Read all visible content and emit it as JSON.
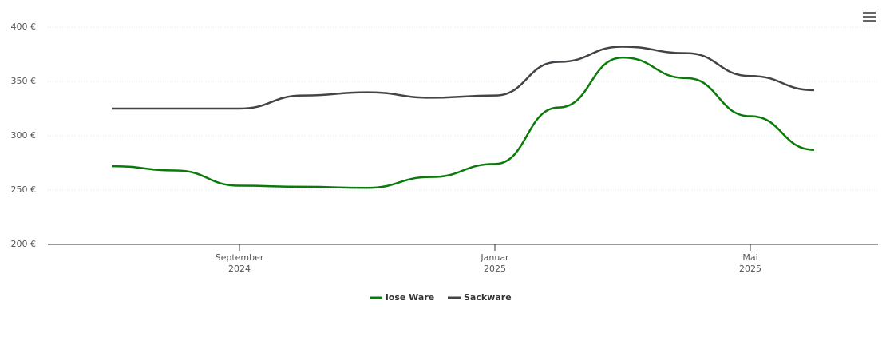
{
  "chart_data": {
    "type": "line",
    "x": [
      "2024-07",
      "2024-08",
      "2024-09",
      "2024-10",
      "2024-11",
      "2024-12",
      "2025-01",
      "2025-02",
      "2025-03",
      "2025-04",
      "2025-05",
      "2025-06"
    ],
    "series": [
      {
        "name": "lose Ware",
        "color": "#0a7a0a",
        "values": [
          272,
          268,
          254,
          253,
          252,
          262,
          274,
          326,
          372,
          353,
          318,
          287
        ]
      },
      {
        "name": "Sackware",
        "color": "#434348",
        "values": [
          325,
          325,
          325,
          337,
          340,
          335,
          337,
          368,
          382,
          376,
          355,
          342
        ]
      }
    ],
    "xlim": [
      "2024-06",
      "2025-07"
    ],
    "xticks": [
      {
        "value": "2024-09",
        "label": "September",
        "year": "2024"
      },
      {
        "value": "2025-01",
        "label": "Januar",
        "year": "2025"
      },
      {
        "value": "2025-05",
        "label": "Mai",
        "year": "2025"
      }
    ],
    "ylim": [
      200,
      400
    ],
    "yticks": [
      {
        "value": 200,
        "label": "200 €"
      },
      {
        "value": 250,
        "label": "250 €"
      },
      {
        "value": 300,
        "label": "300 €"
      },
      {
        "value": 350,
        "label": "350 €"
      },
      {
        "value": 400,
        "label": "400 €"
      }
    ],
    "grid": true
  }
}
